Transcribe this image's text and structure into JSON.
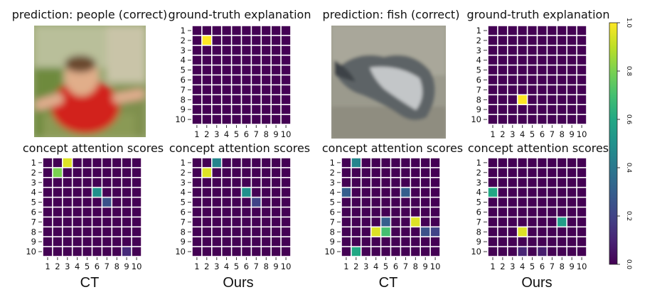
{
  "panel_titles": {
    "pred_left": "prediction: people (correct)",
    "gt_left": "ground-truth explanation",
    "pred_right": "prediction: fish (correct)",
    "gt_right": "ground-truth explanation",
    "cas": "concept attention scores"
  },
  "methods": {
    "ct": "CT",
    "ours": "Ours"
  },
  "images": {
    "people": "photo-blurry-child-red-shirt",
    "fish": "photo-blurry-fish-grey"
  },
  "colorbar": {
    "ticks": [
      "0.0",
      "0.2",
      "0.4",
      "0.6",
      "0.8",
      "1.0"
    ],
    "colormap": "viridis"
  },
  "chart_data": [
    {
      "type": "heatmap",
      "title": "ground-truth explanation",
      "x": [
        "1",
        "2",
        "3",
        "4",
        "5",
        "6",
        "7",
        "8",
        "9",
        "10"
      ],
      "y": [
        "1",
        "2",
        "3",
        "4",
        "5",
        "6",
        "7",
        "8",
        "9",
        "10"
      ],
      "range": [
        0,
        1
      ],
      "cells": [
        {
          "row": 2,
          "col": 2,
          "value": 1.0
        }
      ]
    },
    {
      "type": "heatmap",
      "title": "ground-truth explanation",
      "x": [
        "1",
        "2",
        "3",
        "4",
        "5",
        "6",
        "7",
        "8",
        "9",
        "10"
      ],
      "y": [
        "1",
        "2",
        "3",
        "4",
        "5",
        "6",
        "7",
        "8",
        "9",
        "10"
      ],
      "range": [
        0,
        1
      ],
      "cells": [
        {
          "row": 8,
          "col": 4,
          "value": 1.0
        }
      ]
    },
    {
      "type": "heatmap",
      "title": "concept attention scores",
      "xlabel": "CT",
      "x": [
        "1",
        "2",
        "3",
        "4",
        "5",
        "6",
        "7",
        "8",
        "9",
        "10"
      ],
      "y": [
        "1",
        "2",
        "3",
        "4",
        "5",
        "6",
        "7",
        "8",
        "9",
        "10"
      ],
      "range": [
        0,
        1
      ],
      "cells": [
        {
          "row": 1,
          "col": 3,
          "value": 0.95
        },
        {
          "row": 2,
          "col": 2,
          "value": 0.8
        },
        {
          "row": 4,
          "col": 6,
          "value": 0.5
        },
        {
          "row": 5,
          "col": 7,
          "value": 0.25
        },
        {
          "row": 10,
          "col": 9,
          "value": 0.12
        }
      ]
    },
    {
      "type": "heatmap",
      "title": "concept attention scores",
      "xlabel": "Ours",
      "x": [
        "1",
        "2",
        "3",
        "4",
        "5",
        "6",
        "7",
        "8",
        "9",
        "10"
      ],
      "y": [
        "1",
        "2",
        "3",
        "4",
        "5",
        "6",
        "7",
        "8",
        "9",
        "10"
      ],
      "range": [
        0,
        1
      ],
      "cells": [
        {
          "row": 1,
          "col": 3,
          "value": 0.45
        },
        {
          "row": 2,
          "col": 2,
          "value": 0.95
        },
        {
          "row": 4,
          "col": 6,
          "value": 0.5
        },
        {
          "row": 5,
          "col": 7,
          "value": 0.2
        }
      ]
    },
    {
      "type": "heatmap",
      "title": "concept attention scores",
      "xlabel": "CT",
      "x": [
        "1",
        "2",
        "3",
        "4",
        "5",
        "6",
        "7",
        "8",
        "9",
        "10"
      ],
      "y": [
        "1",
        "2",
        "3",
        "4",
        "5",
        "6",
        "7",
        "8",
        "9",
        "10"
      ],
      "range": [
        0,
        1
      ],
      "cells": [
        {
          "row": 1,
          "col": 2,
          "value": 0.45
        },
        {
          "row": 4,
          "col": 1,
          "value": 0.3
        },
        {
          "row": 4,
          "col": 7,
          "value": 0.3
        },
        {
          "row": 7,
          "col": 5,
          "value": 0.3
        },
        {
          "row": 7,
          "col": 8,
          "value": 0.95
        },
        {
          "row": 8,
          "col": 4,
          "value": 0.95
        },
        {
          "row": 8,
          "col": 5,
          "value": 0.7
        },
        {
          "row": 8,
          "col": 9,
          "value": 0.25
        },
        {
          "row": 8,
          "col": 10,
          "value": 0.2
        },
        {
          "row": 10,
          "col": 2,
          "value": 0.6
        }
      ]
    },
    {
      "type": "heatmap",
      "title": "concept attention scores",
      "xlabel": "Ours",
      "x": [
        "1",
        "2",
        "3",
        "4",
        "5",
        "6",
        "7",
        "8",
        "9",
        "10"
      ],
      "y": [
        "1",
        "2",
        "3",
        "4",
        "5",
        "6",
        "7",
        "8",
        "9",
        "10"
      ],
      "range": [
        0,
        1
      ],
      "cells": [
        {
          "row": 4,
          "col": 1,
          "value": 0.6
        },
        {
          "row": 7,
          "col": 8,
          "value": 0.55
        },
        {
          "row": 8,
          "col": 4,
          "value": 0.95
        },
        {
          "row": 10,
          "col": 4,
          "value": 0.1
        },
        {
          "row": 10,
          "col": 6,
          "value": 0.08
        }
      ]
    }
  ]
}
